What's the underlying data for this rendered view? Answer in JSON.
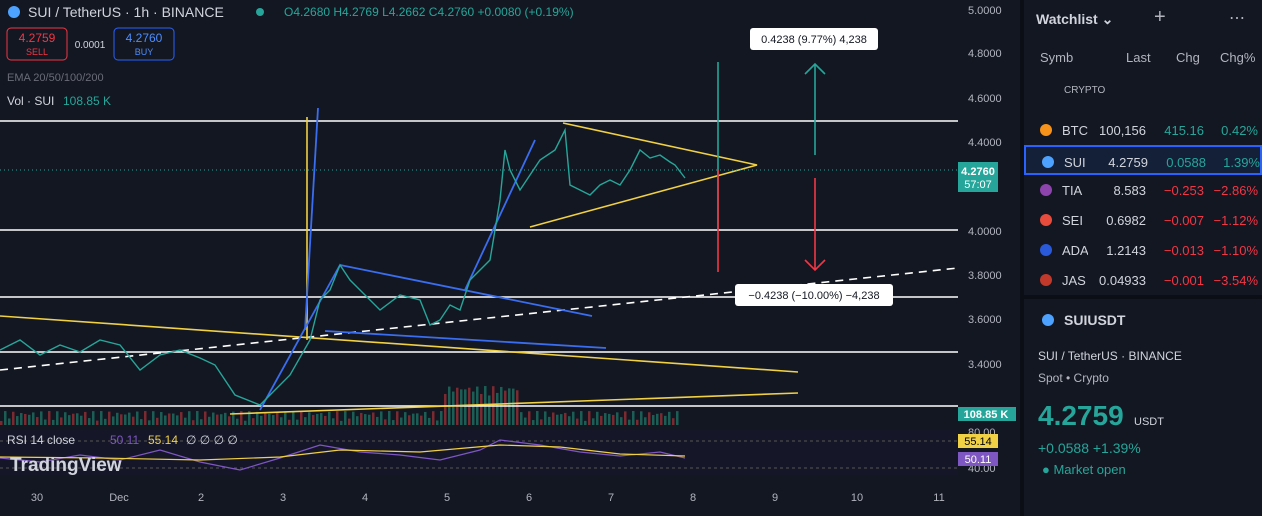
{
  "chart": {
    "header": {
      "title": "SUI / TetherUS · 1h · BINANCE",
      "ohlc": "O4.2680 H4.2769 L4.2662 C4.2760 +0.0080 (+0.19%)",
      "sell_price": "4.2759",
      "sell_label": "SELL",
      "spread": "0.0001",
      "buy_price": "4.2760",
      "buy_label": "BUY",
      "ema": "EMA 20/50/100/200",
      "vol_label": "Vol · SUI",
      "vol_value": "108.85 K"
    },
    "y_labels": [
      "5.0000",
      "4.8000",
      "4.6000",
      "4.4000",
      "4.0000",
      "3.8000",
      "3.6000",
      "3.4000"
    ],
    "rsi_axis": [
      "80.00",
      "40.00"
    ],
    "x_labels": [
      "30",
      "Dec",
      "2",
      "3",
      "4",
      "5",
      "6",
      "7",
      "8",
      "9",
      "10",
      "11"
    ],
    "last_price": "4.2760",
    "countdown": "57:07",
    "volume_badge": "108.85 K",
    "rsi_badges": [
      "55.14",
      "50.11"
    ],
    "annotations": [
      "0.4238 (9.77%) 4,238",
      "−0.4238 (−10.00%) −4,238"
    ],
    "rsi": {
      "label": "RSI 14 close",
      "value": "50.11",
      "ma": "55.14",
      "extra": "∅ ∅ ∅ ∅"
    },
    "brand": "TradingView"
  },
  "watchlist": {
    "title": "Watchlist ⌄",
    "columns": [
      "Symb",
      "Last",
      "Chg",
      "Chg%"
    ],
    "group": "CRYPTO",
    "rows": [
      [
        "BTC",
        "100,156",
        "415.16",
        "0.42%"
      ],
      [
        "SUI",
        "4.2759",
        "0.0588",
        "1.39%"
      ],
      [
        "TIA",
        "8.583",
        "−0.253",
        "−2.86%"
      ],
      [
        "SEI",
        "0.6982",
        "−0.007",
        "−1.12%"
      ],
      [
        "ADA",
        "1.2143",
        "−0.013",
        "−1.10%"
      ],
      [
        "JAS",
        "0.04933",
        "−0.001",
        "−3.54%"
      ]
    ]
  },
  "details": {
    "symbol": "SUIUSDT",
    "name": "SUI / TetherUS · BINANCE",
    "market": "Spot • Crypto",
    "price": "4.2759",
    "currency": "USDT",
    "change": "+0.0588  +1.39%",
    "status": "● Market open"
  }
}
